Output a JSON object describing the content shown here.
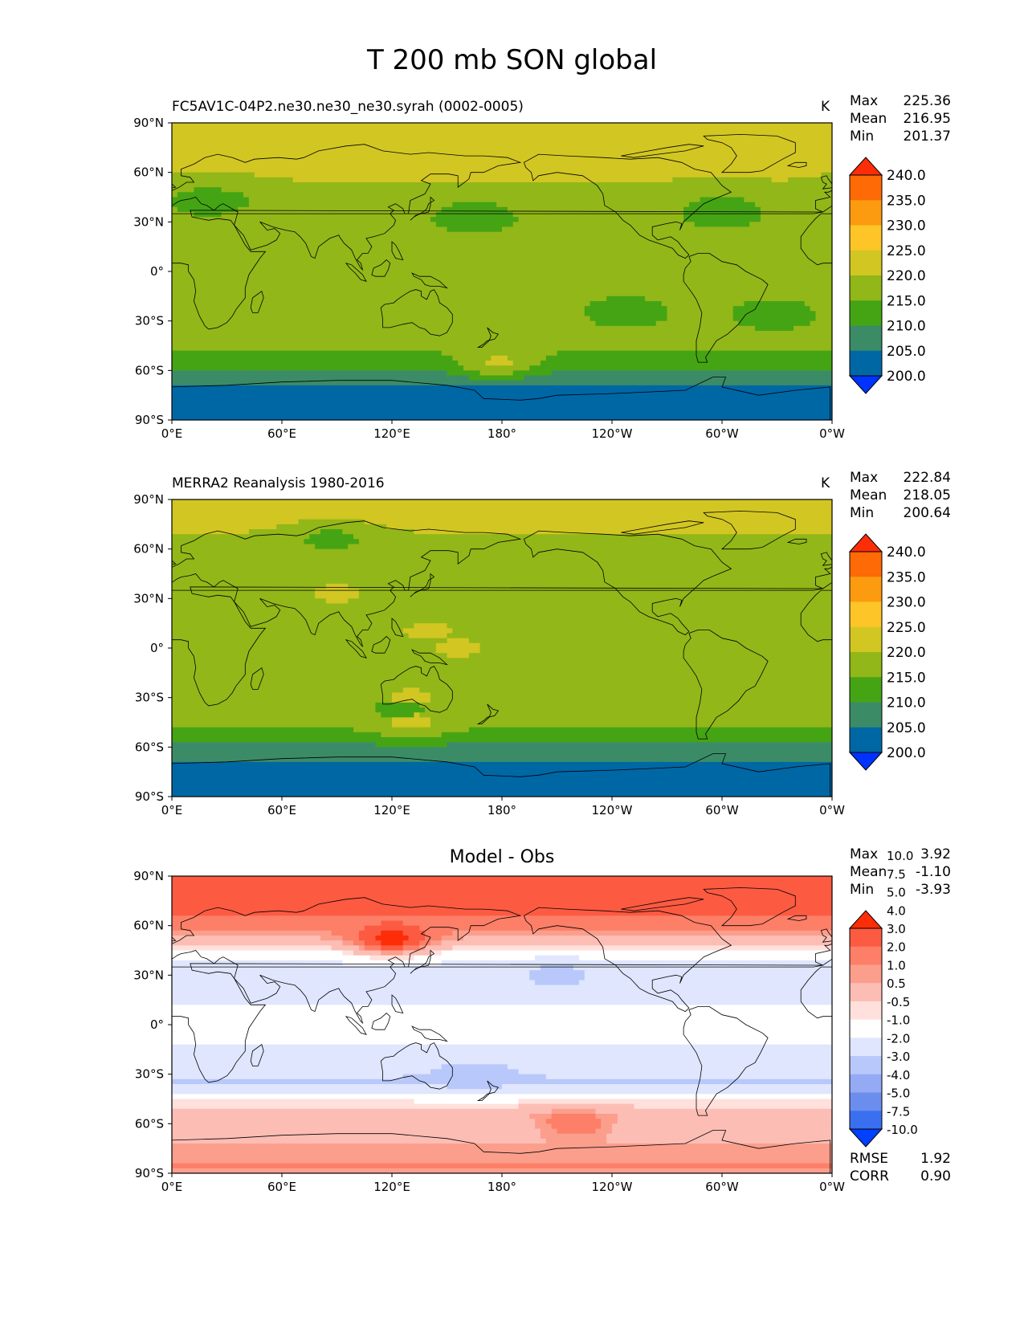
{
  "figure_title": "T 200 mb SON global",
  "colors": {
    "abs_levels": [
      "#0033ff",
      "#0067a5",
      "#3b8c66",
      "#45a414",
      "#92b718",
      "#d2c622",
      "#fdc527",
      "#fc9a10",
      "#fd6a06",
      "#fd2e07"
    ],
    "diff_levels": [
      "#0040ff",
      "#3a6ff0",
      "#6b8eee",
      "#94aaf5",
      "#b8c8fb",
      "#dfe6fd",
      "#ffffff",
      "#ffe0dc",
      "#fcbdb4",
      "#fc9e8c",
      "#fd7f68",
      "#fd5a42",
      "#fd2e07"
    ]
  },
  "axes": {
    "x_ticks": [
      "0°E",
      "60°E",
      "120°E",
      "180°",
      "120°W",
      "60°W",
      "0°W"
    ],
    "y_ticks": [
      "90°N",
      "60°N",
      "30°N",
      "0°",
      "30°S",
      "60°S",
      "90°S"
    ]
  },
  "panels": {
    "model": {
      "title": "FC5AV1C-04P2.ne30.ne30_ne30.syrah (0002-0005)",
      "units": "K",
      "max_label": "Max",
      "max": "225.36",
      "mean_label": "Mean",
      "mean": "216.95",
      "min_label": "Min",
      "min": "201.37"
    },
    "obs": {
      "title": "MERRA2 Reanalysis 1980-2016",
      "units": "K",
      "max_label": "Max",
      "max": "222.84",
      "mean_label": "Mean",
      "mean": "218.05",
      "min_label": "Min",
      "min": "200.64"
    },
    "diff": {
      "title": "Model - Obs",
      "max_label": "Max",
      "max": "3.92",
      "mean_label": "Mean",
      "mean": "-1.10",
      "min_label": "Min",
      "min": "-3.93",
      "rmse_label": "RMSE",
      "rmse": "1.92",
      "corr_label": "CORR",
      "corr": "0.90"
    }
  },
  "colorbars": {
    "abs_ticks": [
      "200.0",
      "205.0",
      "210.0",
      "215.0",
      "220.0",
      "225.0",
      "230.0",
      "235.0",
      "240.0"
    ],
    "diff_ticks": [
      "-10.0",
      "-7.5",
      "-5.0",
      "-4.0",
      "-3.0",
      "-2.0",
      "-1.0",
      "-0.5",
      "0.5",
      "1.0",
      "2.0",
      "3.0",
      "4.0",
      "5.0",
      "7.5",
      "10.0"
    ]
  },
  "chart_data": [
    {
      "type": "heatmap",
      "title": "FC5AV1C-04P2.ne30.ne30_ne30.syrah (0002-0005)",
      "units": "K",
      "xlim": [
        0,
        360
      ],
      "ylim": [
        -90,
        90
      ],
      "zonal_profile": {
        "lat": [
          -90,
          -70,
          -65,
          -57,
          -45,
          -30,
          0,
          30,
          45,
          55,
          70,
          90
        ],
        "value": [
          204,
          204,
          207,
          211,
          216.5,
          216.5,
          216.5,
          216.5,
          217,
          220,
          220.5,
          222
        ]
      },
      "features": [
        {
          "lon": 20,
          "lat": 43,
          "value": 212
        },
        {
          "lon": 165,
          "lat": 33,
          "value": 212
        },
        {
          "lon": 300,
          "lat": 36,
          "value": 212
        },
        {
          "lon": 248,
          "lat": -25,
          "value": 212
        },
        {
          "lon": 328,
          "lat": -26,
          "value": 212
        },
        {
          "lon": 178,
          "lat": -55,
          "value": 221
        },
        {
          "lon": 270,
          "lat": 79,
          "value": 224
        }
      ]
    },
    {
      "type": "heatmap",
      "title": "MERRA2 Reanalysis 1980-2016",
      "units": "K",
      "xlim": [
        0,
        360
      ],
      "ylim": [
        -90,
        90
      ],
      "zonal_profile": {
        "lat": [
          -90,
          -70,
          -65,
          -57,
          -45,
          -30,
          0,
          30,
          50,
          65,
          75,
          90
        ],
        "value": [
          203,
          203,
          207,
          210,
          217,
          217,
          217.5,
          217.5,
          217,
          219,
          221,
          221
        ]
      },
      "features": [
        {
          "lon": 90,
          "lat": 33,
          "value": 221
        },
        {
          "lon": 140,
          "lat": 10,
          "value": 221
        },
        {
          "lon": 155,
          "lat": 0,
          "value": 221
        },
        {
          "lon": 130,
          "lat": -30,
          "value": 221
        },
        {
          "lon": 130,
          "lat": -45,
          "value": 221
        },
        {
          "lon": 125,
          "lat": -37,
          "value": 214
        },
        {
          "lon": 87,
          "lat": 66,
          "value": 213
        }
      ]
    },
    {
      "type": "heatmap",
      "title": "Model - Obs",
      "xlim": [
        0,
        360
      ],
      "ylim": [
        -90,
        90
      ],
      "zonal_profile": {
        "lat": [
          -90,
          -85,
          -75,
          -62,
          -55,
          -45,
          -35,
          -20,
          0,
          20,
          35,
          45,
          52,
          60,
          70,
          90
        ],
        "value": [
          0.8,
          1.1,
          0.6,
          -0.2,
          0.2,
          -1.2,
          -3.2,
          -2.2,
          -1.6,
          -2.2,
          -2.4,
          -1.2,
          0.3,
          1.2,
          2.3,
          2.4
        ]
      },
      "features": [
        {
          "lon": 120,
          "lat": 52,
          "value": 3.5
        },
        {
          "lon": 210,
          "lat": 29,
          "value": -3.5
        },
        {
          "lon": 165,
          "lat": -30,
          "value": -3.6
        },
        {
          "lon": 220,
          "lat": -60,
          "value": 1.6
        }
      ]
    }
  ]
}
